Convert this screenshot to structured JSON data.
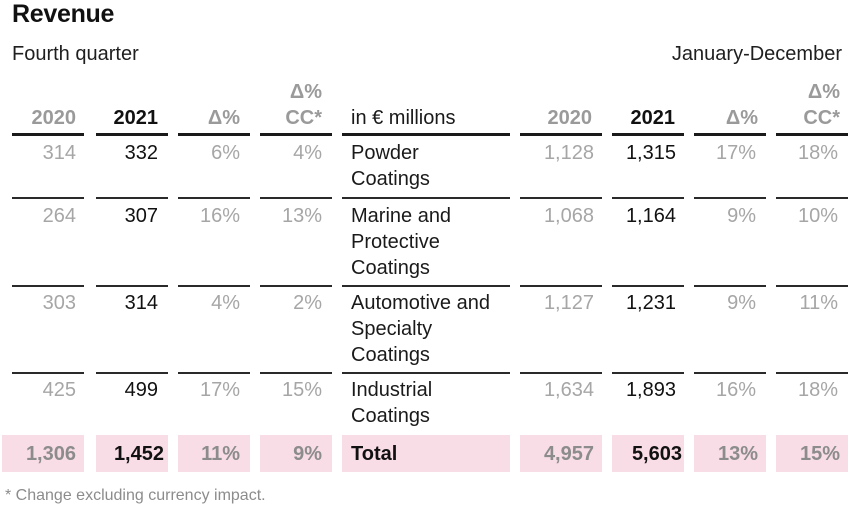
{
  "title": "Revenue",
  "left_period": "Fourth quarter",
  "right_period": "January-December",
  "headers": {
    "y2020": "2020",
    "y2021": "2021",
    "delta_line1": "",
    "delta": "Δ%",
    "cc_line1": "Δ%",
    "cc_line2": "CC*",
    "unit": "in € millions"
  },
  "rows": [
    {
      "segment": [
        "Powder",
        "Coatings"
      ],
      "q2020": "314",
      "q2021": "332",
      "qd": "6%",
      "qcc": "4%",
      "y2020": "1,128",
      "y2021": "1,315",
      "yd": "17%",
      "ycc": "18%"
    },
    {
      "segment": [
        "Marine and",
        "Protective",
        "Coatings"
      ],
      "q2020": "264",
      "q2021": "307",
      "qd": "16%",
      "qcc": "13%",
      "y2020": "1,068",
      "y2021": "1,164",
      "yd": "9%",
      "ycc": "10%"
    },
    {
      "segment": [
        "Automotive and",
        "Specialty",
        "Coatings"
      ],
      "q2020": "303",
      "q2021": "314",
      "qd": "4%",
      "qcc": "2%",
      "y2020": "1,127",
      "y2021": "1,231",
      "yd": "9%",
      "ycc": "11%"
    },
    {
      "segment": [
        "Industrial",
        "Coatings"
      ],
      "q2020": "425",
      "q2021": "499",
      "qd": "17%",
      "qcc": "15%",
      "y2020": "1,634",
      "y2021": "1,893",
      "yd": "16%",
      "ycc": "18%"
    }
  ],
  "total": {
    "label": "Total",
    "q2020": "1,306",
    "q2021": "1,452",
    "qd": "11%",
    "qcc": "9%",
    "y2020": "4,957",
    "y2021": "5,603",
    "yd": "13%",
    "ycc": "15%"
  },
  "footnote": "* Change excluding currency impact.",
  "colors": {
    "total_bg": "#f9dde6",
    "muted_text": "#a6a6a6",
    "rule": "#1a1a1a"
  }
}
